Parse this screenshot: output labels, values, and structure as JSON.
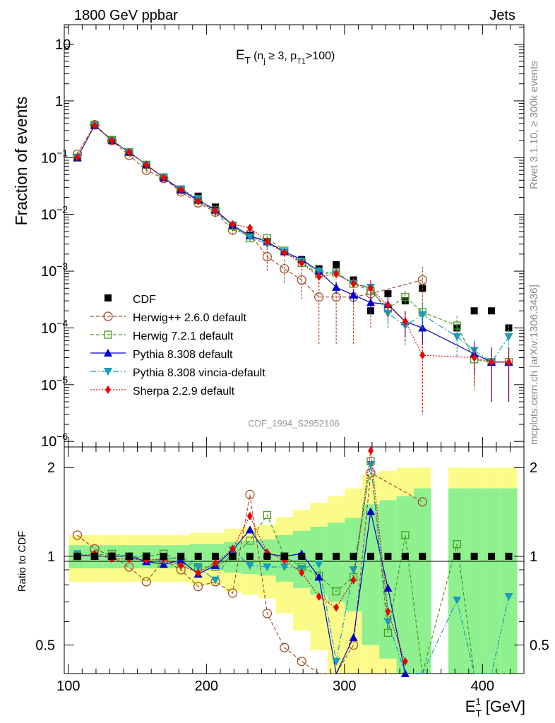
{
  "header": {
    "left": "1800 GeV ppbar",
    "right": "Jets"
  },
  "side_labels": {
    "rivet": "Rivet 3.1.10, ≥ 300k events",
    "mcplots": "mcplots.cern.ch [arXiv:1306.3436]"
  },
  "watermark": "CDF_1994_S2952106",
  "title": {
    "main": "E",
    "main_sub": "T",
    "paren_open": " (n",
    "nj_sub": "j",
    "mid": " ≥ 3, p",
    "pt_sub": "T1",
    "tail": ">100)"
  },
  "axes": {
    "ylabel_top": "Fraction of events",
    "ylabel_bottom": "Ratio to CDF",
    "xlabel_main": "E",
    "xlabel_sup": "1",
    "xlabel_sub": "T",
    "xlabel_unit": " [GeV]",
    "top_ytick_labels": [
      {
        "value": 10,
        "base": "10",
        "exp": ""
      },
      {
        "value": 1,
        "base": "1",
        "exp": ""
      },
      {
        "value": 0.1,
        "base": "10",
        "exp": "−1"
      },
      {
        "value": 0.01,
        "base": "10",
        "exp": "−2"
      },
      {
        "value": 0.001,
        "base": "10",
        "exp": "−3"
      },
      {
        "value": 0.0001,
        "base": "10",
        "exp": "−4"
      },
      {
        "value": 1e-05,
        "base": "10",
        "exp": "−5"
      },
      {
        "value": 1e-06,
        "base": "10",
        "exp": "−6"
      }
    ],
    "ratio_ytick_labels": [
      "2",
      "1",
      "0.5"
    ],
    "xtick_labels": [
      "100",
      "200",
      "300",
      "400"
    ]
  },
  "colors": {
    "CDF": "#000000",
    "Herwig++": "#a0522d",
    "Herwig7": "#4a9a1e",
    "Pythia": "#0000cc",
    "Vincia": "#1a9cb8",
    "Sherpa": "#ee0000",
    "band_inner": "#8ef08e",
    "band_outer": "#fbfb8a"
  },
  "chart_data": {
    "type": "line",
    "title": "E_T (n_j ≥ 3, p_T1>100)",
    "xlabel": "E_T^1 [GeV]",
    "ylabel": "Fraction of events",
    "ratio_ylabel": "Ratio to CDF",
    "xlim": [
      97,
      430
    ],
    "ylim": [
      8e-07,
      22
    ],
    "yscale": "log",
    "ratio_ylim": [
      0.4,
      2.35
    ],
    "ratio_yscale": "log",
    "legend_position": "lower-left",
    "grid": false,
    "x": [
      106.5,
      119,
      131.5,
      144,
      156.5,
      169,
      181.5,
      194,
      206.5,
      219,
      231.5,
      244,
      256.5,
      269,
      281.5,
      294,
      306.5,
      319,
      331.5,
      344,
      356.5,
      369,
      381.5,
      394,
      406.5,
      419
    ],
    "ratio_bands": {
      "inner": [
        0.09,
        0.09,
        0.09,
        0.09,
        0.09,
        0.09,
        0.09,
        0.1,
        0.1,
        0.12,
        0.13,
        0.14,
        0.18,
        0.22,
        0.26,
        0.3,
        0.35,
        0.5,
        0.55,
        0.6,
        0.7,
        null,
        0.7,
        0.7,
        0.7,
        0.7
      ],
      "outer": [
        0.18,
        0.18,
        0.18,
        0.18,
        0.18,
        0.18,
        0.18,
        0.2,
        0.2,
        0.24,
        0.26,
        0.28,
        0.36,
        0.44,
        0.52,
        0.6,
        0.7,
        0.9,
        0.95,
        1.0,
        1.0,
        null,
        1.0,
        1.0,
        1.0,
        1.0
      ]
    },
    "series": [
      {
        "name": "CDF",
        "style": "square-filled",
        "dash": "none",
        "values": [
          0.1,
          0.37,
          0.2,
          0.125,
          0.075,
          0.045,
          0.028,
          0.021,
          0.0135,
          0.0063,
          0.0043,
          0.0033,
          0.0022,
          0.0016,
          0.0011,
          0.0013,
          0.0007,
          0.0002,
          0.0004,
          0.0003,
          0.0005,
          null,
          0.0001,
          0.0002,
          0.0002,
          0.0001
        ],
        "ratio": null
      },
      {
        "name": "Herwig++ 2.6.0 default",
        "style": "circle-open",
        "dash": "5,3",
        "values": [
          0.115,
          0.38,
          0.2,
          0.11,
          0.06,
          0.043,
          0.025,
          0.016,
          0.011,
          0.0053,
          0.0045,
          0.0018,
          0.0011,
          0.0007,
          0.00035,
          0.00035,
          0.00035,
          0.0004,
          null,
          null,
          0.0007,
          null,
          null,
          null,
          null,
          null
        ],
        "ratio": [
          1.18,
          1.06,
          1.0,
          0.92,
          0.82,
          0.97,
          0.9,
          0.79,
          0.82,
          0.75,
          1.62,
          0.64,
          0.49,
          0.44,
          0.33,
          0.27,
          0.5,
          1.92,
          null,
          null,
          1.53,
          null,
          null,
          null,
          null,
          null
        ],
        "errors": [
          0.01,
          0.04,
          0.02,
          0.01,
          0.006,
          0.004,
          0.003,
          0.002,
          0.002,
          0.001,
          0.001,
          0.0008,
          0.0005,
          0.0004,
          0.0003,
          0.0003,
          0.0003,
          0.0003,
          null,
          null,
          0.0005,
          null,
          null,
          null,
          null,
          null
        ]
      },
      {
        "name": "Herwig 7.2.1 default",
        "style": "square-open",
        "dash": "5,3",
        "values": [
          0.1,
          0.38,
          0.205,
          0.125,
          0.075,
          0.045,
          0.027,
          0.018,
          0.012,
          0.0063,
          0.0038,
          0.0038,
          0.0023,
          0.0014,
          0.0009,
          0.00095,
          0.0006,
          0.00045,
          0.00022,
          0.00035,
          0.00019,
          null,
          0.00011,
          2.8e-05,
          2.5e-05,
          2.5e-05
        ],
        "ratio": [
          1.0,
          1.01,
          1.02,
          1.0,
          1.0,
          1.02,
          0.96,
          0.92,
          0.92,
          1.0,
          1.13,
          1.38,
          1.0,
          0.92,
          0.86,
          0.76,
          0.85,
          2.1,
          0.55,
          1.18,
          0.38,
          null,
          1.1,
          0.28,
          0.25,
          0.25
        ],
        "errors": [
          0.005,
          0.02,
          0.01,
          0.007,
          0.004,
          0.003,
          0.002,
          0.0015,
          0.001,
          0.0007,
          0.0005,
          0.0004,
          0.0003,
          0.0002,
          0.0002,
          0.00015,
          0.00015,
          0.00012,
          0.0001,
          0.0001,
          8e-05,
          null,
          5e-05,
          2e-05,
          2e-05,
          2e-05
        ]
      },
      {
        "name": "Pythia 8.308 default",
        "style": "triangle-up",
        "dash": "none",
        "values": [
          0.1,
          0.37,
          0.2,
          0.125,
          0.075,
          0.044,
          0.027,
          0.018,
          0.012,
          0.0065,
          0.0042,
          0.0033,
          0.0022,
          0.0016,
          0.001,
          0.00052,
          0.00038,
          0.00028,
          0.00026,
          0.00013,
          0.0001,
          null,
          null,
          3.5e-05,
          2.5e-05,
          2.5e-05
        ],
        "ratio": [
          1.01,
          1.0,
          1.0,
          1.0,
          0.96,
          0.94,
          0.97,
          0.87,
          0.93,
          1.05,
          1.23,
          1.02,
          1.0,
          1.02,
          0.85,
          0.37,
          0.53,
          1.42,
          0.78,
          0.4,
          0.3,
          null,
          null,
          null,
          null,
          null
        ],
        "errors": [
          0.005,
          0.02,
          0.01,
          0.007,
          0.004,
          0.003,
          0.002,
          0.0015,
          0.001,
          0.0007,
          0.0005,
          0.0004,
          0.0003,
          0.0002,
          0.0002,
          0.00012,
          0.0001,
          0.0001,
          0.0001,
          6e-05,
          5e-05,
          null,
          null,
          2e-05,
          2e-05,
          2e-05
        ]
      },
      {
        "name": "Pythia 8.308 vincia-default",
        "style": "triangle-down",
        "dash": "8,3,2,3",
        "values": [
          0.1,
          0.37,
          0.2,
          0.125,
          0.075,
          0.045,
          0.028,
          0.019,
          0.011,
          0.0065,
          0.004,
          0.003,
          0.0022,
          0.0015,
          0.001,
          0.0009,
          0.0006,
          0.00052,
          0.00018,
          0.00011,
          0.00017,
          null,
          7e-05,
          4e-05,
          2.5e-05,
          7e-05
        ],
        "ratio": [
          1.02,
          1.0,
          1.0,
          1.0,
          0.98,
          0.97,
          1.0,
          0.92,
          0.83,
          1.05,
          0.93,
          0.92,
          0.92,
          0.91,
          0.94,
          0.44,
          0.9,
          2.05,
          0.6,
          0.38,
          0.34,
          null,
          0.71,
          0.38,
          0.3,
          0.73
        ],
        "errors": [
          0.005,
          0.02,
          0.01,
          0.007,
          0.004,
          0.003,
          0.002,
          0.0015,
          0.001,
          0.0007,
          0.0005,
          0.0004,
          0.0003,
          0.0002,
          0.0002,
          0.00015,
          0.00015,
          0.00012,
          8e-05,
          6e-05,
          8e-05,
          null,
          4e-05,
          2e-05,
          2e-05,
          4e-05
        ]
      },
      {
        "name": "Sherpa 2.2.9 default",
        "style": "diamond",
        "dash": "2,2",
        "values": [
          0.1,
          0.37,
          0.2,
          0.125,
          0.075,
          0.044,
          0.027,
          0.017,
          0.0115,
          0.0067,
          0.0058,
          0.0033,
          0.0021,
          0.0014,
          0.0008,
          0.0009,
          0.0006,
          0.0005,
          0.00025,
          0.00013,
          3.3e-05,
          null,
          null,
          3e-05,
          2.5e-05,
          2.5e-05
        ],
        "ratio": [
          1.0,
          1.02,
          0.98,
          0.98,
          0.97,
          0.98,
          0.93,
          0.88,
          0.95,
          1.06,
          1.37,
          1.03,
          0.97,
          0.88,
          0.73,
          0.67,
          0.83,
          2.28,
          0.65,
          0.44,
          null,
          null,
          null,
          null,
          null,
          null
        ],
        "errors": [
          0.005,
          0.02,
          0.01,
          0.007,
          0.004,
          0.003,
          0.002,
          0.0015,
          0.001,
          0.0008,
          0.0007,
          0.0004,
          0.0003,
          0.0002,
          0.0002,
          0.0002,
          0.00015,
          0.00015,
          0.0001,
          7e-05,
          3e-05,
          null,
          null,
          2e-05,
          2e-05,
          2e-05
        ]
      }
    ]
  }
}
